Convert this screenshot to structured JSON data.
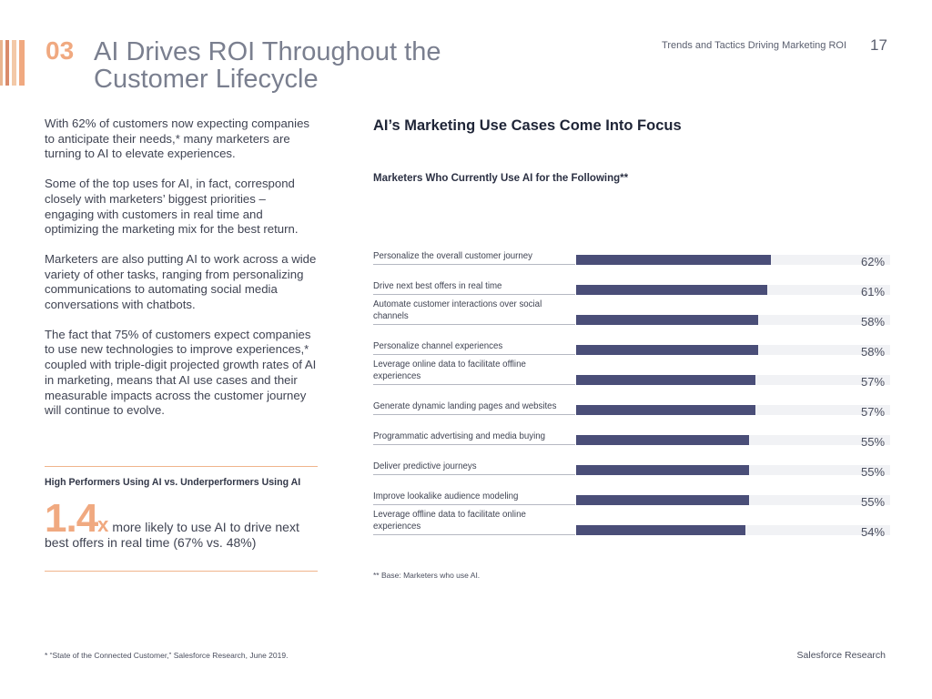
{
  "header": {
    "section_number": "03",
    "title": "AI Drives ROI Throughout the Customer Lifecycle",
    "report_title": "Trends and Tactics Driving Marketing ROI",
    "page_number": "17"
  },
  "left_column": {
    "paragraphs": [
      "With 62% of customers now expecting companies to anticipate their needs,* many marketers are turning to AI to elevate experiences.",
      "Some of the top uses for AI, in fact, correspond closely with marketers’ biggest priorities – engaging with customers in real time and optimizing the marketing mix for the best return.",
      "Marketers are also putting AI to work across a wide variety of other tasks, ranging from personalizing communications to automating social media conversations with chatbots.",
      "The fact that 75% of customers expect companies to use new technologies to improve experiences,* coupled with triple-digit projected growth rates of AI in marketing, means that AI use cases and their measurable impacts across the customer journey will continue to evolve."
    ],
    "high_performers": {
      "heading": "High Performers Using AI vs. Underperformers Using AI",
      "big_number": "1.4",
      "multiplier": "x",
      "text": "more likely to use AI to drive next best offers in real time (67% vs. 48%)"
    }
  },
  "chart_data": {
    "type": "bar",
    "orientation": "horizontal",
    "title": "AI’s Marketing Use Cases Come Into Focus",
    "subtitle": "Marketers Who Currently Use AI for the Following**",
    "categories": [
      "Personalize the overall customer journey",
      "Drive next best offers in real time",
      "Automate customer interactions over social channels",
      "Personalize channel experiences",
      "Leverage online data to facilitate offline experiences",
      "Generate dynamic landing pages and websites",
      "Programmatic advertising and media buying",
      "Deliver predictive journeys",
      "Improve lookalike audience modeling",
      "Leverage offline data to facilitate online experiences"
    ],
    "values": [
      62,
      61,
      58,
      58,
      57,
      57,
      55,
      55,
      55,
      54
    ],
    "value_labels": [
      "62%",
      "61%",
      "58%",
      "58%",
      "57%",
      "57%",
      "55%",
      "55%",
      "55%",
      "54%"
    ],
    "xlim": [
      0,
      100
    ],
    "unit": "%",
    "footnote": "** Base: Marketers who use AI."
  },
  "footer": {
    "citation": "* “State of the Connected Customer,” Salesforce Research, June 2019.",
    "brand": "Salesforce Research"
  },
  "colors": {
    "bar": "#4a4e78",
    "track": "#f1f2f5",
    "accent": "#f0a980"
  }
}
